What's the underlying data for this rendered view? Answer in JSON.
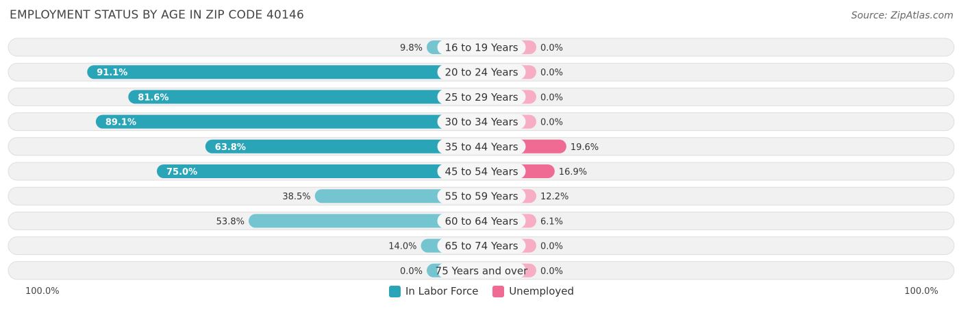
{
  "header": {
    "title": "EMPLOYMENT STATUS BY AGE IN ZIP CODE 40146",
    "source": "Source: ZipAtlas.com"
  },
  "chart_data": {
    "type": "bar",
    "orientation": "horizontal-diverging",
    "title": "EMPLOYMENT STATUS BY AGE IN ZIP CODE 40146",
    "categories": [
      "16 to 19 Years",
      "20 to 24 Years",
      "25 to 29 Years",
      "30 to 34 Years",
      "35 to 44 Years",
      "45 to 54 Years",
      "55 to 59 Years",
      "60 to 64 Years",
      "65 to 74 Years",
      "75 Years and over"
    ],
    "series": [
      {
        "name": "In Labor Force",
        "color": "#2aa5b8",
        "values": [
          9.8,
          91.1,
          81.6,
          89.1,
          63.8,
          75.0,
          38.5,
          53.8,
          14.0,
          0.0
        ],
        "labels": [
          "9.8%",
          "91.1%",
          "81.6%",
          "89.1%",
          "63.8%",
          "75.0%",
          "38.5%",
          "53.8%",
          "14.0%",
          "0.0%"
        ]
      },
      {
        "name": "Unemployed",
        "color": "#f06b94",
        "values": [
          0.0,
          0.0,
          0.0,
          0.0,
          19.6,
          16.9,
          12.2,
          6.1,
          0.0,
          0.0
        ],
        "labels": [
          "0.0%",
          "0.0%",
          "0.0%",
          "0.0%",
          "19.6%",
          "16.9%",
          "12.2%",
          "6.1%",
          "0.0%",
          "0.0%"
        ]
      }
    ],
    "xlim": [
      -100,
      100
    ],
    "axis_left_label": "100.0%",
    "axis_right_label": "100.0%",
    "legend_position": "bottom-center"
  }
}
